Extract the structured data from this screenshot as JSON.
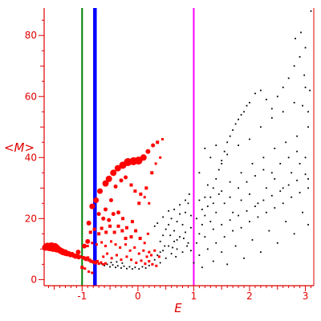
{
  "chart_data": {
    "type": "scatter",
    "xlabel": "E",
    "ylabel": "<M>",
    "xlim": [
      -1.68,
      3.15
    ],
    "ylim": [
      -2,
      89
    ],
    "x_ticks": [
      -1,
      0,
      1,
      2,
      3
    ],
    "y_ticks": [
      0,
      20,
      40,
      60,
      80
    ],
    "grid": false,
    "colors": {
      "axes": "#e00000",
      "red_points": "#ff0000",
      "black_points": "#000000",
      "line_green": "#008000",
      "line_blue": "#0000ff",
      "line_magenta": "#ff00ff"
    },
    "vertical_lines": [
      {
        "x": -1.0,
        "color": "#008000"
      },
      {
        "x": -0.77,
        "color": "#0000ff"
      },
      {
        "x": 1.0,
        "color": "#ff00ff"
      }
    ],
    "red_series": {
      "points": [
        [
          -1.66,
          10.5,
          4
        ],
        [
          -1.62,
          10.8,
          5
        ],
        [
          -1.58,
          10.6,
          5
        ],
        [
          -1.55,
          10.9,
          5
        ],
        [
          -1.52,
          10.4,
          5
        ],
        [
          -1.49,
          10.7,
          5
        ],
        [
          -1.46,
          10.2,
          5
        ],
        [
          -1.43,
          10.0,
          4
        ],
        [
          -1.4,
          9.6,
          4
        ],
        [
          -1.37,
          9.3,
          4
        ],
        [
          -1.34,
          9.0,
          4
        ],
        [
          -1.3,
          8.8,
          4
        ],
        [
          -1.27,
          8.4,
          3
        ],
        [
          -1.24,
          8.6,
          3
        ],
        [
          -1.21,
          8.1,
          3
        ],
        [
          -1.18,
          8.3,
          3
        ],
        [
          -1.15,
          7.9,
          3
        ],
        [
          -1.12,
          7.6,
          3
        ],
        [
          -1.09,
          7.8,
          3
        ],
        [
          -1.06,
          7.4,
          3
        ],
        [
          -1.04,
          7.5,
          2
        ],
        [
          -0.98,
          7.2,
          2
        ],
        [
          -0.96,
          7.0,
          2
        ],
        [
          -0.93,
          6.6,
          2
        ],
        [
          -0.9,
          7.1,
          2
        ],
        [
          -0.87,
          6.4,
          2
        ],
        [
          -0.84,
          6.0,
          2
        ],
        [
          -0.8,
          5.8,
          2
        ],
        [
          -0.76,
          5.5,
          2
        ],
        [
          -0.73,
          5.9,
          2
        ],
        [
          -0.7,
          5.2,
          1.5
        ],
        [
          -0.66,
          5.6,
          1.5
        ],
        [
          -0.62,
          5.0,
          1.5
        ],
        [
          -0.58,
          5.3,
          1.5
        ],
        [
          -1.0,
          4.0,
          2
        ],
        [
          -0.95,
          3.6,
          1.5
        ],
        [
          -0.88,
          2.6,
          1.5
        ],
        [
          -0.82,
          2.2,
          1.5
        ],
        [
          -1.07,
          9.0,
          3
        ],
        [
          -0.96,
          11.0,
          3
        ],
        [
          -0.9,
          12.5,
          3
        ],
        [
          -0.88,
          18.5,
          3
        ],
        [
          -0.82,
          24.0,
          3.5
        ],
        [
          -0.75,
          26.0,
          3.5
        ],
        [
          -0.68,
          29.0,
          3.5
        ],
        [
          -0.58,
          31.5,
          4
        ],
        [
          -0.52,
          33.0,
          4
        ],
        [
          -0.44,
          35.0,
          4
        ],
        [
          -0.36,
          36.5,
          4
        ],
        [
          -0.27,
          37.5,
          4.5
        ],
        [
          -0.18,
          38.5,
          5
        ],
        [
          -0.08,
          38.8,
          5
        ],
        [
          0.01,
          39.0,
          5
        ],
        [
          0.1,
          40.0,
          4
        ],
        [
          0.18,
          42.0,
          3
        ],
        [
          0.27,
          44.0,
          2.5
        ],
        [
          0.35,
          45.0,
          2
        ],
        [
          0.44,
          46.0,
          1.5
        ],
        [
          -0.58,
          23.0,
          2.5
        ],
        [
          -0.48,
          26.0,
          2.5
        ],
        [
          -0.4,
          30.5,
          2.5
        ],
        [
          -0.3,
          32.5,
          2.5
        ],
        [
          -0.22,
          33.5,
          2.5
        ],
        [
          -0.12,
          31.0,
          2
        ],
        [
          -0.05,
          29.0,
          2
        ],
        [
          0.05,
          28.0,
          2
        ],
        [
          0.15,
          30.0,
          2
        ],
        [
          0.25,
          35.0,
          2
        ],
        [
          0.32,
          38.0,
          1.5
        ],
        [
          0.4,
          40.0,
          1.5
        ],
        [
          -0.7,
          21.5,
          2.5
        ],
        [
          -0.62,
          20.0,
          2.5
        ],
        [
          -0.52,
          19.5,
          2.5
        ],
        [
          -0.44,
          21.5,
          2.5
        ],
        [
          -0.35,
          22.0,
          2.5
        ],
        [
          -0.27,
          20.0,
          2
        ],
        [
          -0.2,
          17.0,
          2
        ],
        [
          -0.1,
          19.0,
          2
        ],
        [
          0.02,
          25.0,
          2
        ],
        [
          0.12,
          27.0,
          1.5
        ],
        [
          0.2,
          25.0,
          1.5
        ],
        [
          -0.85,
          15.5,
          2
        ],
        [
          -0.78,
          16.5,
          2
        ],
        [
          -0.7,
          15.0,
          2
        ],
        [
          -0.65,
          16.8,
          2
        ],
        [
          -0.57,
          15.5,
          2
        ],
        [
          -0.5,
          17.5,
          2
        ],
        [
          -0.42,
          15.5,
          2
        ],
        [
          -0.35,
          17.5,
          2
        ],
        [
          -0.28,
          16.0,
          2
        ],
        [
          -0.22,
          13.5,
          2
        ],
        [
          -0.12,
          14.0,
          2
        ],
        [
          -0.04,
          16.0,
          2
        ],
        [
          0.04,
          13.5,
          2
        ],
        [
          0.12,
          12.0,
          1.5
        ],
        [
          0.18,
          15.0,
          1.5
        ],
        [
          -0.9,
          11.0,
          1.5
        ],
        [
          -0.82,
          12.0,
          1.5
        ],
        [
          -0.74,
          11.5,
          1.5
        ],
        [
          -0.65,
          12.2,
          1.5
        ],
        [
          -0.58,
          11.0,
          1.5
        ],
        [
          -0.48,
          12.5,
          1.5
        ],
        [
          -0.4,
          11.5,
          1.5
        ],
        [
          -0.32,
          10.5,
          1.5
        ],
        [
          -0.22,
          11.5,
          1.5
        ],
        [
          -0.14,
          9.5,
          1.5
        ],
        [
          -0.06,
          10.5,
          1.5
        ],
        [
          0.02,
          8.5,
          1.5
        ],
        [
          0.1,
          9.5,
          1.5
        ],
        [
          0.16,
          7.5,
          1.5
        ],
        [
          0.2,
          9.0,
          1.5
        ],
        [
          -0.62,
          7.5,
          1.5
        ],
        [
          -0.55,
          8.5,
          1.5
        ],
        [
          -0.47,
          7.0,
          1.5
        ],
        [
          -0.38,
          8.0,
          1.5
        ],
        [
          -0.3,
          6.5,
          1.5
        ],
        [
          -0.2,
          7.5,
          1.5
        ],
        [
          -0.12,
          6.5,
          1.5
        ],
        [
          -0.03,
          5.5,
          1.5
        ],
        [
          0.06,
          6.2,
          1.5
        ],
        [
          0.13,
          5.2,
          1.5
        ],
        [
          0.2,
          6.0,
          1.5
        ],
        [
          0.26,
          5.0,
          1.5
        ],
        [
          0.33,
          4.5,
          1.5
        ],
        [
          0.24,
          8.0,
          1.5
        ],
        [
          0.3,
          9.5,
          1.5
        ],
        [
          0.38,
          7.5,
          1.5
        ]
      ]
    },
    "black_series": {
      "points": [
        [
          -0.65,
          5.2
        ],
        [
          -0.6,
          4.6
        ],
        [
          -0.55,
          5.0
        ],
        [
          -0.5,
          4.2
        ],
        [
          -0.45,
          4.8
        ],
        [
          -0.4,
          4.0
        ],
        [
          -0.36,
          4.5
        ],
        [
          -0.3,
          3.8
        ],
        [
          -0.25,
          4.4
        ],
        [
          -0.2,
          3.6
        ],
        [
          -0.15,
          4.2
        ],
        [
          -0.1,
          3.5
        ],
        [
          -0.05,
          4.0
        ],
        [
          0.02,
          3.5
        ],
        [
          0.08,
          4.2
        ],
        [
          0.14,
          3.8
        ],
        [
          0.2,
          4.6
        ],
        [
          -0.48,
          5.6
        ],
        [
          -0.38,
          5.8
        ],
        [
          -0.28,
          5.4
        ],
        [
          0.25,
          5.0
        ],
        [
          0.3,
          6.5
        ],
        [
          0.35,
          8.0
        ],
        [
          0.4,
          5.5
        ],
        [
          0.45,
          9.5
        ],
        [
          0.5,
          7.0
        ],
        [
          0.55,
          11.0
        ],
        [
          0.6,
          8.5
        ],
        [
          0.65,
          12.5
        ],
        [
          0.7,
          10.0
        ],
        [
          0.75,
          14.0
        ],
        [
          0.8,
          9.0
        ],
        [
          0.85,
          15.5
        ],
        [
          0.9,
          12.0
        ],
        [
          0.95,
          17.0
        ],
        [
          0.4,
          12.5
        ],
        [
          0.45,
          14.5
        ],
        [
          0.5,
          16.5
        ],
        [
          0.55,
          18.0
        ],
        [
          0.6,
          20.0
        ],
        [
          0.65,
          16.0
        ],
        [
          0.7,
          19.0
        ],
        [
          0.75,
          21.5
        ],
        [
          0.8,
          18.0
        ],
        [
          0.85,
          22.0
        ],
        [
          0.9,
          25.0
        ],
        [
          0.95,
          21.0
        ],
        [
          0.3,
          17.5
        ],
        [
          0.35,
          18.5
        ],
        [
          0.45,
          20.5
        ],
        [
          0.55,
          22.5
        ],
        [
          0.65,
          23.0
        ],
        [
          0.75,
          24.5
        ],
        [
          0.85,
          26.0
        ],
        [
          0.92,
          28.0
        ],
        [
          0.7,
          13.0
        ],
        [
          0.58,
          14.5
        ],
        [
          0.82,
          13.5
        ],
        [
          0.48,
          11.0
        ],
        [
          0.62,
          10.5
        ],
        [
          0.88,
          11.0
        ],
        [
          0.95,
          9.5
        ],
        [
          0.4,
          9.0
        ],
        [
          0.68,
          7.5
        ],
        [
          1.05,
          12.0
        ],
        [
          1.1,
          15.0
        ],
        [
          1.15,
          18.0
        ],
        [
          1.2,
          21.0
        ],
        [
          1.25,
          24.0
        ],
        [
          1.3,
          27.0
        ],
        [
          1.35,
          30.0
        ],
        [
          1.4,
          33.0
        ],
        [
          1.45,
          36.0
        ],
        [
          1.5,
          39.0
        ],
        [
          1.55,
          42.0
        ],
        [
          1.6,
          45.0
        ],
        [
          1.65,
          47.0
        ],
        [
          1.7,
          49.0
        ],
        [
          1.75,
          51.0
        ],
        [
          1.8,
          52.5
        ],
        [
          1.85,
          54.0
        ],
        [
          1.9,
          55.0
        ],
        [
          1.95,
          57.0
        ],
        [
          2.0,
          58.0
        ],
        [
          2.1,
          61.0
        ],
        [
          2.2,
          62.0
        ],
        [
          2.3,
          59.0
        ],
        [
          2.4,
          56.0
        ],
        [
          2.5,
          60.0
        ],
        [
          2.6,
          63.0
        ],
        [
          2.7,
          66.0
        ],
        [
          2.8,
          70.0
        ],
        [
          2.9,
          73.0
        ],
        [
          3.0,
          76.0
        ],
        [
          1.2,
          43.0
        ],
        [
          1.3,
          40.0
        ],
        [
          1.4,
          44.0
        ],
        [
          1.5,
          38.0
        ],
        [
          1.6,
          41.0
        ],
        [
          1.8,
          44.0
        ],
        [
          2.0,
          46.0
        ],
        [
          2.2,
          50.0
        ],
        [
          2.4,
          53.0
        ],
        [
          2.6,
          55.0
        ],
        [
          2.8,
          58.0
        ],
        [
          3.0,
          63.0
        ],
        [
          1.1,
          35.0
        ],
        [
          1.25,
          31.0
        ],
        [
          1.45,
          28.0
        ],
        [
          1.65,
          32.0
        ],
        [
          1.85,
          35.0
        ],
        [
          2.05,
          38.0
        ],
        [
          2.25,
          40.0
        ],
        [
          2.45,
          43.0
        ],
        [
          2.65,
          45.0
        ],
        [
          2.85,
          47.0
        ],
        [
          3.05,
          50.0
        ],
        [
          1.05,
          20.0
        ],
        [
          1.15,
          23.0
        ],
        [
          1.3,
          19.0
        ],
        [
          1.4,
          22.0
        ],
        [
          1.55,
          25.0
        ],
        [
          1.7,
          22.0
        ],
        [
          1.85,
          26.0
        ],
        [
          2.0,
          28.0
        ],
        [
          2.15,
          25.0
        ],
        [
          2.3,
          30.0
        ],
        [
          2.45,
          33.0
        ],
        [
          2.6,
          30.0
        ],
        [
          2.75,
          35.0
        ],
        [
          2.9,
          38.0
        ],
        [
          3.05,
          33.0
        ],
        [
          1.2,
          27.0
        ],
        [
          1.35,
          25.0
        ],
        [
          1.5,
          29.0
        ],
        [
          1.65,
          27.0
        ],
        [
          1.8,
          30.0
        ],
        [
          1.95,
          32.0
        ],
        [
          2.1,
          34.0
        ],
        [
          2.25,
          36.0
        ],
        [
          2.4,
          35.0
        ],
        [
          2.55,
          38.0
        ],
        [
          2.7,
          40.0
        ],
        [
          2.85,
          42.0
        ],
        [
          3.0,
          40.0
        ],
        [
          1.1,
          8.0
        ],
        [
          1.25,
          10.0
        ],
        [
          1.4,
          12.0
        ],
        [
          1.55,
          14.0
        ],
        [
          1.7,
          16.0
        ],
        [
          1.85,
          17.0
        ],
        [
          2.0,
          19.0
        ],
        [
          2.15,
          20.5
        ],
        [
          2.3,
          22.0
        ],
        [
          2.45,
          23.5
        ],
        [
          2.6,
          25.0
        ],
        [
          2.75,
          27.0
        ],
        [
          2.9,
          28.5
        ],
        [
          3.05,
          30.0
        ],
        [
          1.2,
          14.0
        ],
        [
          1.35,
          16.5
        ],
        [
          1.5,
          18.0
        ],
        [
          1.65,
          19.5
        ],
        [
          1.8,
          21.0
        ],
        [
          1.95,
          22.5
        ],
        [
          2.1,
          24.0
        ],
        [
          2.25,
          26.0
        ],
        [
          2.4,
          27.5
        ],
        [
          2.55,
          29.0
        ],
        [
          2.7,
          31.0
        ],
        [
          2.85,
          32.5
        ],
        [
          3.0,
          34.5
        ],
        [
          1.15,
          4.0
        ],
        [
          1.35,
          6.0
        ],
        [
          1.6,
          5.0
        ],
        [
          1.9,
          7.0
        ],
        [
          2.2,
          9.0
        ],
        [
          2.5,
          12.0
        ],
        [
          2.8,
          15.0
        ],
        [
          3.05,
          18.0
        ],
        [
          1.5,
          9.0
        ],
        [
          1.75,
          11.0
        ],
        [
          2.05,
          13.0
        ],
        [
          2.35,
          16.0
        ],
        [
          2.65,
          19.0
        ],
        [
          2.95,
          22.0
        ],
        [
          1.0,
          5.5
        ],
        [
          1.1,
          26.0
        ],
        [
          2.95,
          57.0
        ],
        [
          3.05,
          55.0
        ],
        [
          3.1,
          88.0
        ],
        [
          2.92,
          81.0
        ],
        [
          2.82,
          79.0
        ],
        [
          3.08,
          62.0
        ],
        [
          2.98,
          67.0
        ]
      ]
    }
  }
}
